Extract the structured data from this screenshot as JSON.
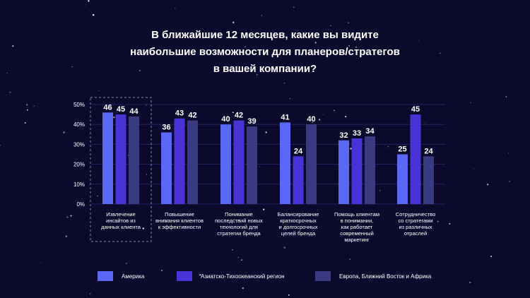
{
  "title_lines": [
    "В ближайшие 12 месяцев, какие вы видите",
    "наибольшие возможности для планеров/стратегов",
    "в вашей компании?"
  ],
  "colors": {
    "background": "#0b0a2c",
    "series": [
      "#5b67f5",
      "#4a33d6",
      "#3a3a82"
    ],
    "grid": "#23235a",
    "highlight_box": "#8a8aa8"
  },
  "chart_data": {
    "type": "bar",
    "title": "В ближайшие 12 месяцев, какие вы видите наибольшие возможности для планеров/стратегов в вашей компании?",
    "categories": [
      [
        "Извлечение",
        "инсайтов из",
        "данных клиента"
      ],
      [
        "Повышение",
        "внимания клиентов",
        "к эффективности"
      ],
      [
        "Понимание",
        "последствий новых",
        "технологий для",
        "стратегии бренда"
      ],
      [
        "Балансирование",
        "краткосрочных",
        "и долгосрочных",
        "целей бренда"
      ],
      [
        "Помощь клиентам",
        "в понимании,",
        "как работает",
        "современный",
        "маркетинг"
      ],
      [
        "Сотрудничество",
        "со стратегами",
        "из различных",
        "отраслей"
      ]
    ],
    "series": [
      {
        "name": "Америка",
        "values": [
          46,
          36,
          40,
          41,
          32,
          25
        ]
      },
      {
        "name": "Азиатско-Тихоокеанский регион",
        "values": [
          45,
          43,
          42,
          24,
          33,
          45
        ]
      },
      {
        "name": "Европа, Ближний Восток и Африка",
        "values": [
          44,
          42,
          39,
          40,
          34,
          24
        ]
      }
    ],
    "yticks": [
      "0%",
      "10%",
      "20%",
      "30%",
      "40%",
      "50%"
    ],
    "ylim": [
      0,
      50
    ],
    "grid": true,
    "legend_position": "bottom",
    "highlighted_category": 0
  }
}
